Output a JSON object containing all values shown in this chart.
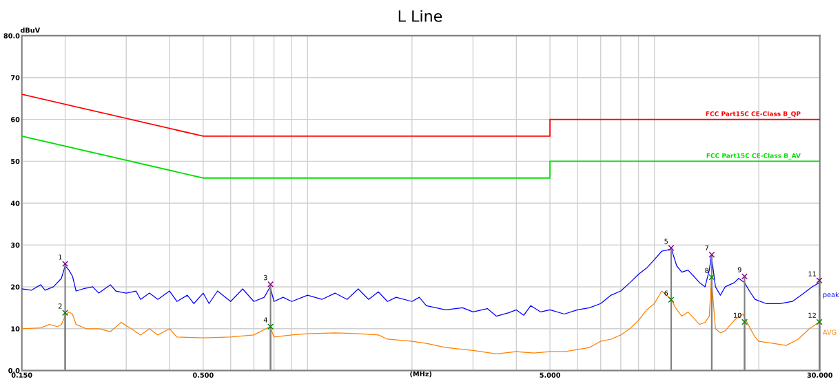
{
  "chart_data": {
    "type": "line",
    "title": "L Line",
    "xlabel": "(MHz)",
    "ylabel": "dBuV",
    "log": "x",
    "xlim": [
      0.15,
      30
    ],
    "ylim": [
      0,
      80
    ],
    "xticks": [
      {
        "value": 0.15,
        "label": "0.150"
      },
      {
        "value": 0.2,
        "label": null
      },
      {
        "value": 0.3,
        "label": null
      },
      {
        "value": 0.4,
        "label": null
      },
      {
        "value": 0.5,
        "label": "0.500"
      },
      {
        "value": 0.6,
        "label": null
      },
      {
        "value": 0.7,
        "label": null
      },
      {
        "value": 0.8,
        "label": null
      },
      {
        "value": 0.9,
        "label": null
      },
      {
        "value": 1,
        "label": null
      },
      {
        "value": 2,
        "label": null
      },
      {
        "value": 3,
        "label": null
      },
      {
        "value": 4,
        "label": null
      },
      {
        "value": 5,
        "label": "5.000"
      },
      {
        "value": 6,
        "label": null
      },
      {
        "value": 7,
        "label": null
      },
      {
        "value": 8,
        "label": null
      },
      {
        "value": 9,
        "label": null
      },
      {
        "value": 10,
        "label": null
      },
      {
        "value": 20,
        "label": null
      },
      {
        "value": 30,
        "label": "30.000"
      }
    ],
    "yticks": [
      {
        "value": 0,
        "label": "0.0"
      },
      10,
      20,
      30,
      40,
      50,
      60,
      70,
      {
        "value": 80,
        "label": "80.0"
      }
    ],
    "grid": true,
    "legend": false,
    "marker": "none",
    "line_style": "solid",
    "series": [
      {
        "name": "FCC Part15C CE-Class B_QP",
        "color": "#ff0000",
        "x": [
          0.15,
          0.5,
          5,
          5,
          30
        ],
        "values": [
          66,
          56,
          56,
          60,
          60
        ]
      },
      {
        "name": "FCC Part15C CE-Class B_AV",
        "color": "#00e000",
        "x": [
          0.15,
          0.5,
          5,
          5,
          30
        ],
        "values": [
          56,
          46,
          46,
          50,
          50
        ]
      },
      {
        "name": "peak",
        "color": "#0000ff",
        "x": [
          0.15,
          0.16,
          0.17,
          0.175,
          0.185,
          0.195,
          0.2,
          0.205,
          0.21,
          0.215,
          0.225,
          0.24,
          0.25,
          0.27,
          0.28,
          0.3,
          0.32,
          0.33,
          0.35,
          0.37,
          0.4,
          0.42,
          0.45,
          0.47,
          0.5,
          0.52,
          0.55,
          0.6,
          0.65,
          0.7,
          0.75,
          0.78,
          0.8,
          0.85,
          0.9,
          1.0,
          1.1,
          1.2,
          1.3,
          1.4,
          1.5,
          1.6,
          1.7,
          1.8,
          2.0,
          2.1,
          2.2,
          2.5,
          2.8,
          3.0,
          3.3,
          3.5,
          3.8,
          4.0,
          4.2,
          4.4,
          4.7,
          5.0,
          5.5,
          6,
          6.5,
          7,
          7.5,
          8,
          8.5,
          9,
          9.5,
          10,
          10.5,
          11.2,
          11.6,
          12,
          12.5,
          13,
          13.5,
          14,
          14.4,
          14.6,
          15,
          15.5,
          16,
          17,
          17.5,
          18.2,
          18.8,
          19.5,
          21,
          23,
          25,
          27,
          28.5,
          29.9,
          30
        ],
        "values": [
          19.5,
          19.2,
          20.5,
          19.2,
          20,
          22,
          25,
          24,
          22.5,
          19,
          19.5,
          20,
          18.5,
          20.5,
          19,
          18.5,
          19,
          17,
          18.5,
          17,
          19,
          16.5,
          18,
          16,
          18.5,
          16,
          19,
          16.5,
          19.5,
          16.5,
          17.5,
          20,
          16.5,
          17.5,
          16.5,
          18,
          17,
          18.5,
          17,
          19.5,
          17,
          18.8,
          16.5,
          17.5,
          16.5,
          17.5,
          15.5,
          14.5,
          15,
          14,
          14.8,
          13,
          13.8,
          14.5,
          13.2,
          15.5,
          14,
          14.5,
          13.5,
          14.5,
          15,
          16,
          18,
          19,
          21,
          23,
          24.5,
          26.5,
          28.5,
          29,
          25,
          23.5,
          24,
          22.5,
          21,
          20,
          24,
          27.5,
          20,
          18,
          20,
          21,
          22,
          21,
          19,
          17,
          16,
          16,
          16.5,
          18.5,
          20,
          21,
          18
        ]
      },
      {
        "name": "AVG",
        "color": "#ff8000",
        "x": [
          0.15,
          0.17,
          0.18,
          0.19,
          0.195,
          0.2,
          0.205,
          0.21,
          0.215,
          0.23,
          0.25,
          0.27,
          0.29,
          0.31,
          0.33,
          0.35,
          0.37,
          0.4,
          0.42,
          0.5,
          0.6,
          0.7,
          0.78,
          0.8,
          0.9,
          1.0,
          1.2,
          1.4,
          1.6,
          1.7,
          2.0,
          2.2,
          2.5,
          3.0,
          3.5,
          4.0,
          4.5,
          5,
          5.5,
          6,
          6.5,
          7,
          7.5,
          8,
          8.5,
          9,
          9.5,
          10,
          10.5,
          11.2,
          11.5,
          12,
          12.5,
          13,
          13.5,
          14,
          14.4,
          14.6,
          15,
          15.5,
          16,
          17,
          18,
          18.5,
          19.5,
          20,
          22,
          24,
          26,
          28,
          29.9,
          30
        ],
        "values": [
          10,
          10.2,
          11,
          10.5,
          11,
          13,
          14,
          13.5,
          11,
          10,
          10,
          9.3,
          11.5,
          10,
          8.5,
          10,
          8.5,
          10,
          8,
          7.8,
          8,
          8.5,
          10.5,
          8,
          8.5,
          8.8,
          9,
          8.8,
          8.5,
          7.5,
          7,
          6.5,
          5.5,
          4.8,
          4,
          4.5,
          4.2,
          4.5,
          4.5,
          5,
          5.5,
          7,
          7.5,
          8.5,
          10,
          12,
          14.5,
          16,
          19,
          17,
          15,
          13,
          14,
          12.5,
          11,
          11.5,
          13,
          22,
          10,
          9,
          9.5,
          12,
          13.5,
          11.5,
          8,
          7,
          6.5,
          6,
          7.5,
          10,
          11.6,
          9
        ]
      },
      {
        "type": "lollipop",
        "color": "#800080",
        "marker": "cross",
        "x": [
          0.2,
          0.782,
          11.18,
          14.64,
          18.2,
          29.9
        ],
        "values": [
          25.5,
          20.6,
          29.3,
          27.7,
          22.5,
          21.5
        ]
      },
      {
        "type": "lollipop",
        "color": "#008000",
        "marker": "cross",
        "x": [
          0.2,
          0.782,
          11.18,
          14.64,
          18.2,
          29.9
        ],
        "values": [
          13.8,
          10.5,
          16.9,
          22.3,
          11.6,
          11.6
        ]
      }
    ],
    "annotations": [
      {
        "text": "1",
        "x": 0.2,
        "y": 25.5
      },
      {
        "text": "2",
        "x": 0.2,
        "y": 13.8
      },
      {
        "text": "3",
        "x": 0.782,
        "y": 20.6
      },
      {
        "text": "4",
        "x": 0.782,
        "y": 10.5
      },
      {
        "text": "5",
        "x": 11.18,
        "y": 29.3
      },
      {
        "text": "6",
        "x": 11.18,
        "y": 16.9
      },
      {
        "text": "7",
        "x": 14.64,
        "y": 27.7
      },
      {
        "text": "8",
        "x": 14.64,
        "y": 22.3
      },
      {
        "text": "9",
        "x": 18.2,
        "y": 22.5
      },
      {
        "text": "10",
        "x": 18.2,
        "y": 11.6
      },
      {
        "text": "11",
        "x": 29.9,
        "y": 21.5
      },
      {
        "text": "12",
        "x": 29.9,
        "y": 11.6
      }
    ]
  }
}
